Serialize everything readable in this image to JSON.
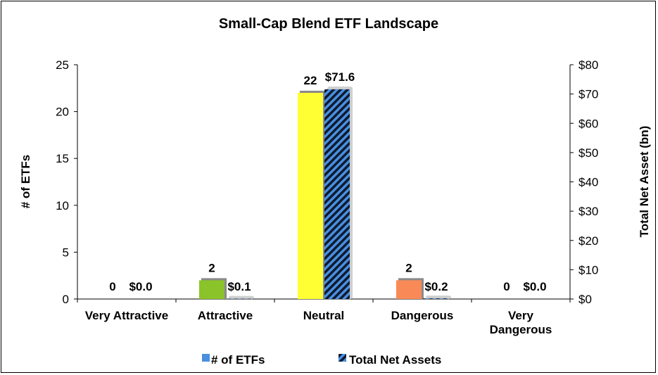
{
  "chart_data": {
    "type": "bar",
    "title": "Small-Cap Blend ETF Landscape",
    "ylabel": "# of ETFs",
    "y2label": "Total Net Asset (bn)",
    "ylim": [
      0,
      25
    ],
    "y2lim": [
      0,
      80
    ],
    "yticks": [
      "0",
      "5",
      "10",
      "15",
      "20",
      "25"
    ],
    "y2ticks": [
      "$0",
      "$10",
      "$20",
      "$30",
      "$40",
      "$50",
      "$60",
      "$70",
      "$80"
    ],
    "categories": [
      [
        "Very Attractive"
      ],
      [
        "Attractive"
      ],
      [
        "Neutral"
      ],
      [
        "Dangerous"
      ],
      [
        "Very",
        "Dangerous"
      ]
    ],
    "series": [
      {
        "name": "# of ETFs",
        "axis": "left",
        "values": [
          0,
          2,
          22,
          2,
          0
        ],
        "labels": [
          "0",
          "2",
          "22",
          "2",
          "0"
        ],
        "colors": [
          "#2f6f2f",
          "#8ac42a",
          "#ffff33",
          "#f98a57",
          "#b32222"
        ],
        "legend_color": "#4a8fe0"
      },
      {
        "name": "Total Net Assets",
        "axis": "right",
        "values": [
          0.0,
          0.1,
          71.6,
          0.2,
          0.0
        ],
        "labels": [
          "$0.0",
          "$0.1",
          "$71.6",
          "$0.2",
          "$0.0"
        ],
        "pattern": "diagonal-stripes",
        "colors": [
          "#4a8fe0",
          "#0d1b30"
        ]
      }
    ],
    "grid": false,
    "legend": "bottom"
  }
}
